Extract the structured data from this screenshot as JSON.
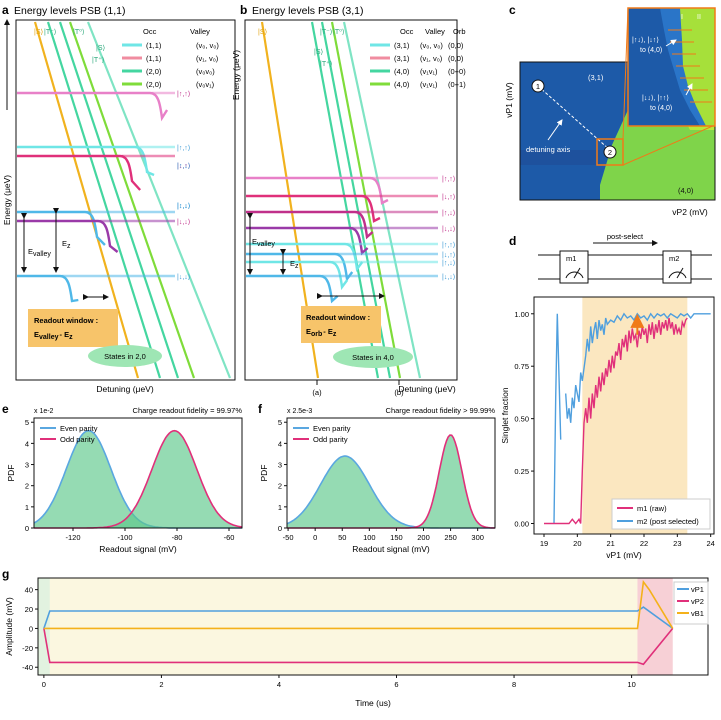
{
  "panel_a": {
    "letter": "a",
    "title": "Energy levels PSB (1,1)",
    "ylabel": "Energy (μeV)",
    "xlabel": "Detuning (μeV)",
    "col_occ": "Occ",
    "col_valley": "Valley",
    "legend": [
      {
        "occ": "(1,1)",
        "valley": "(v₀, v₀)",
        "color": "#6fe6e6"
      },
      {
        "occ": "(1,1)",
        "valley": "(v₁, v₀)",
        "color": "#f08ca0"
      },
      {
        "occ": "(2,0)",
        "valley": "(v₀v₀)",
        "color": "#44d6a0"
      },
      {
        "occ": "(2,0)",
        "valley": "(v₀v₁)",
        "color": "#7fdc3a"
      }
    ],
    "top_labels": [
      "|S⟩",
      "|T⁻⟩",
      "|T⁰⟩",
      "|S⟩",
      "|T⁺⟩"
    ],
    "state_labels": [
      "|↑,↑⟩",
      "|↑,↑⟩",
      "|↓,↑⟩",
      "|↑,↓⟩",
      "|↑,↓⟩",
      "|↓,↓⟩",
      "|↓,↓⟩",
      "|↓,↓⟩"
    ],
    "e_valley": "E",
    "e_valley_sub": "valley",
    "e_z": "E",
    "e_z_sub": "z",
    "readout_line1": "Readout window :",
    "readout_e": "E",
    "readout_sub": "valley",
    "readout_tail": "- E",
    "readout_tail_sub": "z",
    "states_label": "States in 2,0"
  },
  "panel_b": {
    "letter": "b",
    "title": "Energy levels PSB (3,1)",
    "ylabel": "Energy (μeV)",
    "xlabel": "Detuning (μeV)",
    "col_occ": "Occ",
    "col_valley": "Valley",
    "col_orb": "Orb",
    "legend": [
      {
        "occ": "(3,1)",
        "valley": "(v₀, v₀)",
        "orb": "(0,0)",
        "color": "#6fe6e6"
      },
      {
        "occ": "(3,1)",
        "valley": "(v₁, v₀)",
        "orb": "(0,0)",
        "color": "#f08ca0"
      },
      {
        "occ": "(4,0)",
        "valley": "(v₁v₁)",
        "orb": "(0+0)",
        "color": "#44d6a0"
      },
      {
        "occ": "(4,0)",
        "valley": "(v₁v₁)",
        "orb": "(0+1)",
        "color": "#7fdc3a"
      }
    ],
    "top_labels": [
      "|S⟩",
      "|T⁻⟩",
      "|T⁰⟩",
      "|S⟩",
      "|T⁺⟩"
    ],
    "state_labels": [
      "|↑,↑⟩",
      "|↓,↑⟩",
      "|↑,↓⟩",
      "|↓,↓⟩",
      "|↑,↑⟩",
      "|↓,↑⟩",
      "|↑,↓⟩",
      "|↓,↓⟩"
    ],
    "e_valley": "E",
    "e_valley_sub": "valley",
    "e_z": "E",
    "e_z_sub": "z",
    "readout_line1": "Readout window :",
    "readout_e": "E",
    "readout_sub": "orb",
    "readout_tail": "- E",
    "readout_tail_sub": "z",
    "states_label": "States in 4,0",
    "marker_a": "(a)",
    "marker_b": "(b)"
  },
  "panel_c": {
    "letter": "c",
    "ylabel": "vP1 (mV)",
    "xlabel": "vP2 (mV)",
    "label_31": "(3,1)",
    "label_40": "(4,0)",
    "detuning": "detuning axis",
    "point1": "1",
    "point2": "2",
    "inset_i": "I",
    "inset_ii": "II",
    "inset_text1_a": "|↑↓⟩, |↓↑⟩",
    "inset_text1_b": "to (4,0)",
    "inset_text2_a": "|↓↓⟩, |↑↑⟩",
    "inset_text2_b": "to (4,0)"
  },
  "panel_d": {
    "letter": "d",
    "circuit_m1": "m1",
    "circuit_m2": "m2",
    "postselect": "post-select",
    "ylabel": "Singlet fraction",
    "xlabel": "vP1 (mV)",
    "legend_m1": "m1  (raw)",
    "legend_m2": "m2  (post selected)"
  },
  "panel_e": {
    "letter": "e",
    "title": "Charge readout fidelity = 99.97%",
    "scale": "x 1e-2",
    "ylabel": "PDF",
    "xlabel": "Readout signal (mV)",
    "legend_even": "Even parity",
    "legend_odd": "Odd parity"
  },
  "panel_f": {
    "letter": "f",
    "title": "Charge readout fidelity > 99.99%",
    "scale": "x 2.5e-3",
    "ylabel": "PDF",
    "xlabel": "Readout signal (mV)",
    "legend_even": "Even parity",
    "legend_odd": "Odd parity"
  },
  "panel_g": {
    "letter": "g",
    "ylabel": "Amplitude (mV)",
    "xlabel": "Time (us)",
    "legend": [
      "vP1",
      "vP2",
      "vB1"
    ]
  },
  "chart_data": [
    {
      "id": "d",
      "type": "line",
      "title": "",
      "xlabel": "vP1 (mV)",
      "ylabel": "Singlet fraction",
      "xlim": [
        18.7,
        24.1
      ],
      "ylim": [
        -0.05,
        1.08
      ],
      "xticks": [
        19,
        20,
        21,
        22,
        23,
        24
      ],
      "yticks": [
        0.0,
        0.25,
        0.5,
        0.75,
        1.0
      ],
      "ytick_labels": [
        "0.00",
        "0.25",
        "0.50",
        "0.75",
        "1.00"
      ],
      "shaded_region": [
        20.15,
        23.3
      ],
      "arrow_x": 21.8,
      "series": [
        {
          "name": "m1  (raw)",
          "color": "#e0307a",
          "x": [
            19.0,
            19.2,
            19.4,
            19.6,
            19.75,
            19.85,
            19.95,
            20.05,
            20.1,
            20.15,
            20.2,
            20.25,
            20.3,
            20.35,
            20.4,
            20.45,
            20.5,
            20.55,
            20.6,
            20.65,
            20.7,
            20.75,
            20.8,
            20.85,
            20.9,
            20.95,
            21.0,
            21.05,
            21.1,
            21.15,
            21.2,
            21.25,
            21.3,
            21.35,
            21.4,
            21.45,
            21.5,
            21.55,
            21.6,
            21.65,
            21.7,
            21.75,
            21.8,
            21.85,
            21.9,
            21.95,
            22.0,
            22.05,
            22.1,
            22.15,
            22.2,
            22.25,
            22.3,
            22.35,
            22.4,
            22.45,
            22.5,
            22.55,
            22.6,
            22.65,
            22.7,
            22.75,
            22.8,
            22.85,
            22.9,
            22.95,
            23.0,
            23.05,
            23.1,
            23.15,
            23.2,
            23.25,
            23.3
          ],
          "y": [
            0.0,
            0.0,
            0.0,
            0.0,
            0.0,
            0.02,
            0.0,
            0.02,
            0.0,
            0.25,
            0.48,
            0.55,
            0.48,
            0.6,
            0.5,
            0.62,
            0.55,
            0.66,
            0.6,
            0.7,
            0.63,
            0.72,
            0.66,
            0.74,
            0.7,
            0.78,
            0.72,
            0.8,
            0.74,
            0.82,
            0.8,
            0.86,
            0.78,
            0.88,
            0.84,
            0.9,
            0.82,
            0.92,
            0.86,
            0.93,
            0.88,
            0.9,
            0.84,
            0.92,
            0.88,
            0.94,
            0.9,
            0.93,
            0.86,
            0.95,
            0.9,
            0.96,
            0.88,
            0.95,
            0.91,
            0.97,
            0.9,
            0.96,
            0.93,
            0.97,
            0.92,
            0.98,
            0.93,
            0.96,
            0.9,
            0.95,
            0.91,
            0.93,
            0.9,
            0.96,
            0.94,
            0.97,
            0.98
          ]
        },
        {
          "name": "m2  (post selected)",
          "color": "#4f9fde",
          "segments": [
            {
              "x": [
                19.3,
                19.35,
                19.4,
                19.45,
                19.5
              ],
              "y": [
                0.0,
                0.6,
                1.0,
                0.7,
                0.4
              ]
            },
            {
              "x": [
                19.65,
                19.7,
                19.75,
                19.8,
                19.85,
                19.9,
                19.95,
                20.0,
                20.05,
                20.1,
                20.15,
                20.2,
                20.25,
                20.3,
                20.35,
                20.4,
                20.45,
                20.5,
                20.55,
                20.6,
                20.65,
                20.7,
                20.75,
                20.8,
                20.85,
                20.9,
                21.0,
                21.1,
                21.2,
                21.3,
                21.4,
                21.5,
                21.6,
                21.7,
                21.8,
                21.9,
                22.0,
                22.1,
                22.2,
                22.3,
                22.4,
                22.5,
                22.6,
                22.7,
                22.8,
                22.9,
                23.0,
                23.1,
                23.2,
                23.3,
                23.4,
                23.5,
                23.6,
                23.7,
                23.8,
                23.9,
                24.0
              ],
              "y": [
                0.62,
                0.5,
                0.55,
                0.48,
                0.6,
                0.55,
                0.66,
                0.62,
                0.58,
                0.72,
                0.68,
                0.74,
                0.8,
                0.88,
                0.82,
                0.94,
                0.86,
                0.92,
                0.96,
                0.88,
                0.97,
                0.92,
                0.95,
                0.9,
                0.98,
                0.95,
                0.97,
                0.96,
                0.99,
                0.97,
                1.0,
                0.98,
                0.99,
                0.97,
                1.0,
                0.98,
                0.99,
                0.97,
                1.0,
                0.98,
                1.0,
                0.99,
                1.0,
                0.98,
                1.0,
                0.99,
                0.98,
                1.0,
                0.99,
                1.0,
                0.98,
                1.0,
                1.0,
                1.0,
                1.0,
                1.0,
                1.0
              ]
            }
          ]
        }
      ]
    },
    {
      "id": "e",
      "type": "area",
      "title": "Charge readout fidelity = 99.97%",
      "xlabel": "Readout signal (mV)",
      "ylabel": "PDF",
      "xlim": [
        -135,
        -55
      ],
      "ylim": [
        0,
        5.2
      ],
      "xticks": [
        -120,
        -100,
        -80,
        -60
      ],
      "yticks": [
        0,
        1,
        2,
        3,
        4,
        5
      ],
      "series": [
        {
          "name": "Even parity",
          "color": "#5aa7e0",
          "mean": -114,
          "sigma": 8.6,
          "peak": 4.6
        },
        {
          "name": "Odd parity",
          "color": "#e0307a",
          "mean": -81,
          "sigma": 8.6,
          "peak": 4.6
        }
      ]
    },
    {
      "id": "f",
      "type": "area",
      "title": "Charge readout fidelity > 99.99%",
      "xlabel": "Readout signal (mV)",
      "ylabel": "PDF",
      "xlim": [
        -52,
        332
      ],
      "ylim": [
        0,
        5.2
      ],
      "xticks": [
        -50,
        0,
        50,
        100,
        150,
        200,
        250,
        300
      ],
      "yticks": [
        0,
        1,
        2,
        3,
        4,
        5
      ],
      "series": [
        {
          "name": "Even parity",
          "color": "#5aa7e0",
          "mean": 55,
          "sigma": 45,
          "peak": 3.4
        },
        {
          "name": "Odd parity",
          "color": "#e0307a",
          "mean": 250,
          "sigma": 21,
          "peak": 4.4
        }
      ]
    },
    {
      "id": "g",
      "type": "line",
      "title": "",
      "xlabel": "Time (us)",
      "ylabel": "Amplitude (mV)",
      "xlim": [
        -0.1,
        11.3
      ],
      "ylim": [
        -48,
        52
      ],
      "xticks": [
        0,
        2,
        4,
        6,
        8,
        10
      ],
      "yticks": [
        -40,
        -20,
        0,
        20,
        40
      ],
      "shaded_regions": [
        [
          -0.1,
          10.1,
          "#fbf7e0"
        ],
        [
          10.1,
          10.7,
          "#f7d0d6"
        ],
        [
          -0.1,
          0.1,
          "#e2f2e0"
        ]
      ],
      "series": [
        {
          "name": "vP1",
          "color": "#4f9fde",
          "x": [
            0,
            0.1,
            10.1,
            10.2,
            10.7
          ],
          "y": [
            0,
            18,
            18,
            22,
            0
          ]
        },
        {
          "name": "vP2",
          "color": "#e0307a",
          "x": [
            0,
            0.1,
            10.1,
            10.2,
            10.7
          ],
          "y": [
            0,
            -35,
            -35,
            -37,
            0
          ]
        },
        {
          "name": "vB1",
          "color": "#f4b11a",
          "x": [
            0,
            10.1,
            10.2,
            10.3,
            10.7
          ],
          "y": [
            0,
            0,
            48,
            40,
            0
          ]
        }
      ]
    }
  ]
}
